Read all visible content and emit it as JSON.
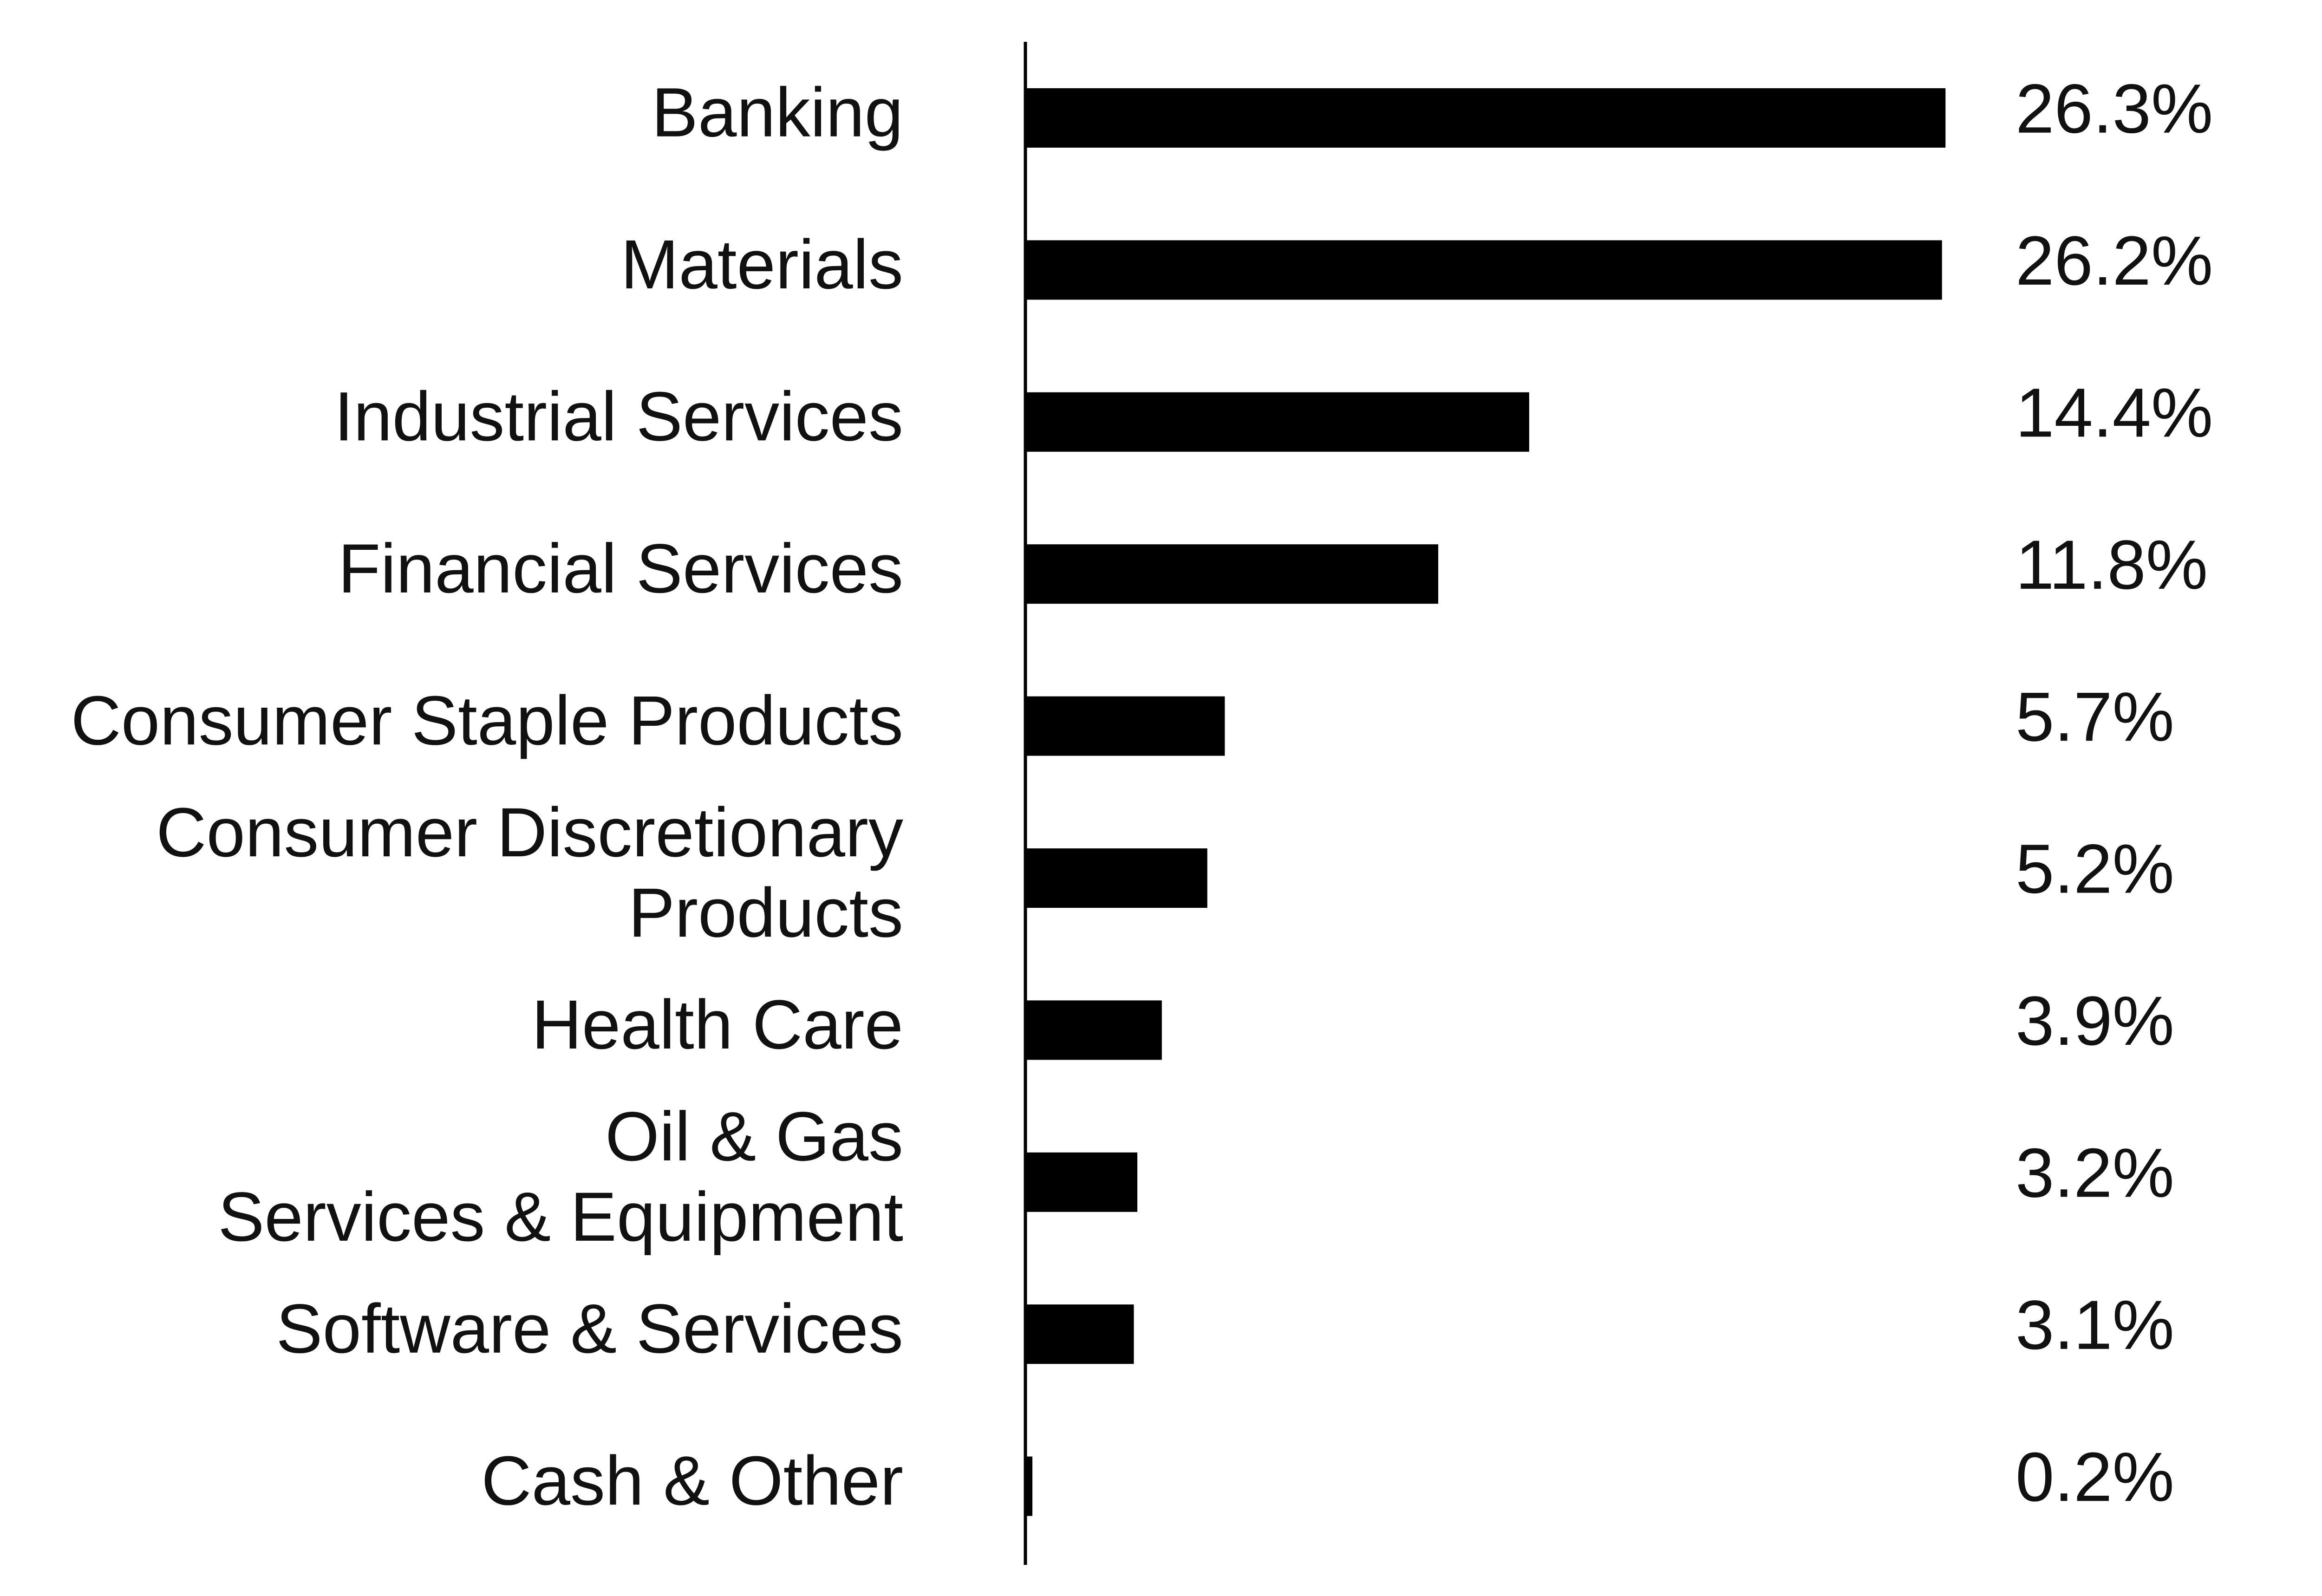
{
  "chart_data": {
    "type": "hbar",
    "categories": [
      "Banking",
      "Materials",
      "Industrial Services",
      "Financial Services",
      "Consumer Staple Products",
      [
        "Consumer Discretionary",
        "Products"
      ],
      "Health Care",
      [
        "Oil & Gas",
        "Services & Equipment"
      ],
      "Software & Services",
      "Cash & Other"
    ],
    "values": [
      26.3,
      26.2,
      14.4,
      11.8,
      5.7,
      5.2,
      3.9,
      3.2,
      3.1,
      0.2
    ],
    "value_labels": [
      "26.3%",
      "26.2%",
      "14.4%",
      "11.8%",
      "5.7%",
      "5.2%",
      "3.9%",
      "3.2%",
      "3.1%",
      "0.2%"
    ],
    "color": "#000000",
    "xlim": [
      0,
      30
    ]
  }
}
